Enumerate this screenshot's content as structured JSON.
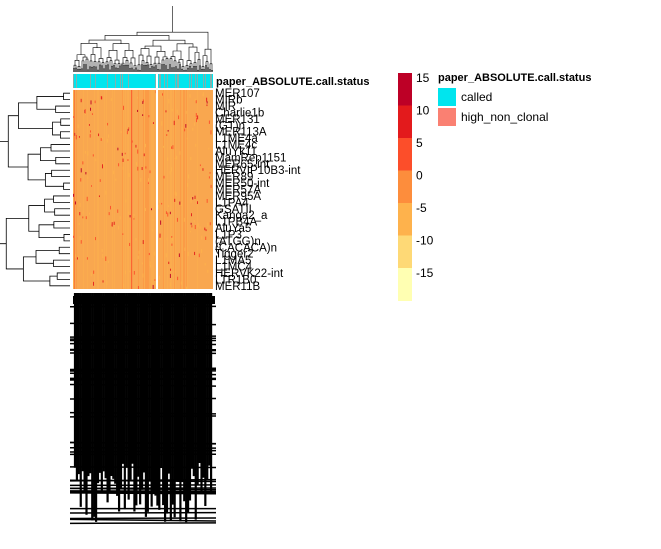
{
  "annotation_title": "paper_ABSOLUTE.call.status",
  "legend": {
    "title": "paper_ABSOLUTE.call.status",
    "items": [
      {
        "label": "called",
        "color": "#00E5EE"
      },
      {
        "label": "high_non_clonal",
        "color": "#FA8072"
      }
    ]
  },
  "chart_data": {
    "type": "heatmap",
    "title": "",
    "row_labels": [
      "MER107",
      "MIRb",
      "MIR",
      "Charlie1b",
      "MER131",
      "(GT)n",
      "MER113A",
      "L1ME4a",
      "L1ME4c",
      "AluYk11",
      "MamRep1151",
      "MER65-int",
      "HERVIP10B3-int",
      "MER89",
      "MER50-int",
      "MER57A",
      "MER95A",
      "L1PA4",
      "GSATII",
      "Kanga2_a",
      "L1PB4A",
      "AluYa5",
      "L1P3",
      "(ATGG)n",
      "(CACACA)n",
      "Tigger2",
      "L1MA5",
      "L1MC4",
      "HERVK22-int",
      "LTR1B0",
      "MER11B"
    ],
    "color_scale": {
      "ticks": [
        15,
        10,
        5,
        0,
        -5,
        -10,
        -15
      ],
      "colors": [
        "#BD0026",
        "#E31A1C",
        "#FC4E2A",
        "#FD8D3C",
        "#FEB24C",
        "#FED976",
        "#FFFFB2"
      ],
      "range": [
        -15,
        15
      ]
    },
    "column_annotation_colors": {
      "called": "#00E5EE",
      "high_non_clonal": "#FA8072"
    },
    "base_fill": "#F9A74F",
    "column_split": "two groups",
    "row_dendrogram": "left",
    "column_dendrogram": "top"
  }
}
